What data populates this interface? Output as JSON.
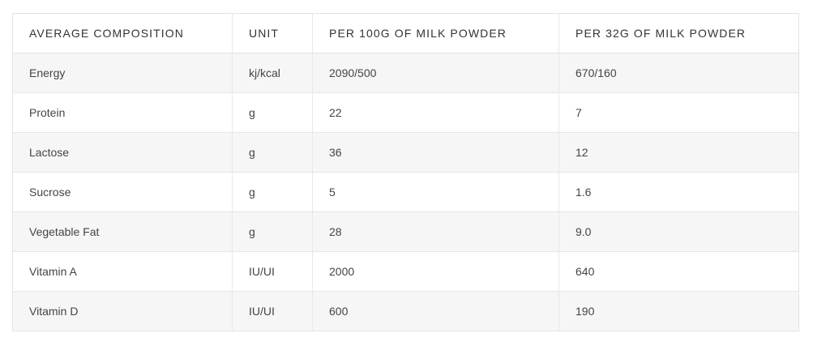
{
  "table": {
    "columns": [
      "AVERAGE COMPOSITION",
      "UNIT",
      "PER 100G OF MILK POWDER",
      "PER 32G OF MILK POWDER"
    ],
    "rows": [
      [
        "Energy",
        "kj/kcal",
        "2090/500",
        "670/160"
      ],
      [
        "Protein",
        "g",
        "22",
        "7"
      ],
      [
        "Lactose",
        "g",
        "36",
        "12"
      ],
      [
        "Sucrose",
        "g",
        "5",
        "1.6"
      ],
      [
        "Vegetable Fat",
        "g",
        "28",
        "9.0"
      ],
      [
        "Vitamin A",
        "IU/UI",
        "2000",
        "640"
      ],
      [
        "Vitamin D",
        "IU/UI",
        "600",
        "190"
      ]
    ]
  }
}
